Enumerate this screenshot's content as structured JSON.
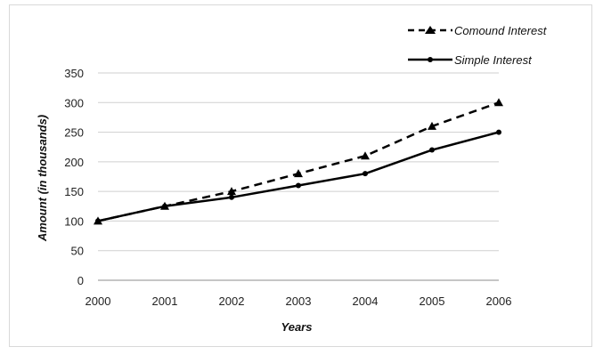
{
  "chart_data": {
    "type": "line",
    "title": "",
    "xlabel": "Years",
    "ylabel": "Amount (in  thousands)",
    "x": [
      "2000",
      "2001",
      "2002",
      "2003",
      "2004",
      "2005",
      "2006"
    ],
    "ylim": [
      0,
      350
    ],
    "yticks": [
      "0",
      "50",
      "100",
      "150",
      "200",
      "250",
      "300",
      "350"
    ],
    "grid": "horizontal",
    "legend": "top-right",
    "series": [
      {
        "name": "Comound Interest",
        "values": [
          100,
          125,
          150,
          180,
          210,
          260,
          300
        ],
        "style": "dashed",
        "marker": "triangle",
        "color": "#000000"
      },
      {
        "name": "Simple Interest",
        "values": [
          100,
          125,
          140,
          160,
          180,
          220,
          250
        ],
        "style": "solid",
        "marker": "circle",
        "color": "#000000"
      }
    ]
  }
}
